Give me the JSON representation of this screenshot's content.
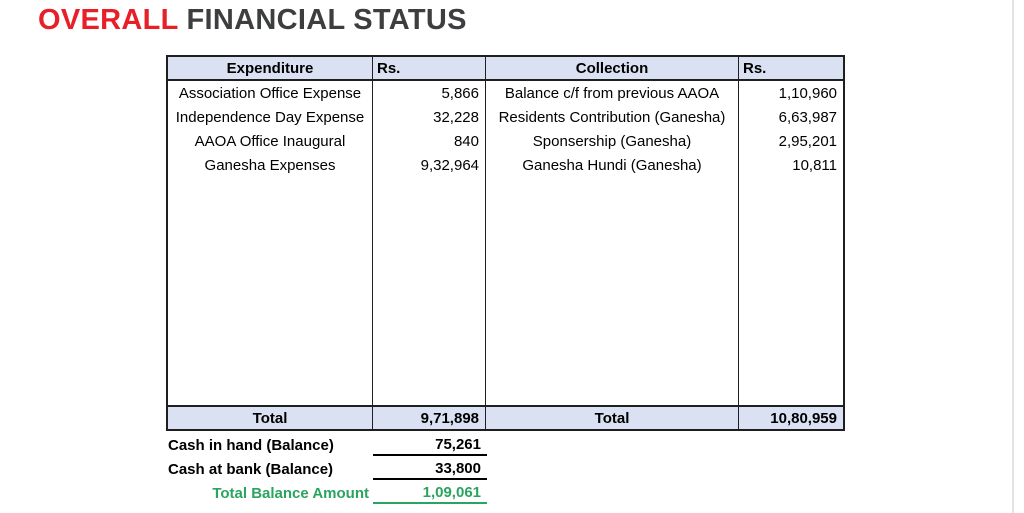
{
  "title": {
    "highlight": "OVERALL",
    "rest": " FINANCIAL STATUS"
  },
  "colors": {
    "accent_red": "#e81e29",
    "title_dark": "#3d3e40",
    "table_header_fill": "#d9e1f2",
    "summary_green": "#2aa45e",
    "table_border": "#1f1f1f"
  },
  "table": {
    "headers": [
      "Expenditure",
      "Rs.",
      "Collection",
      "Rs."
    ],
    "rows": [
      {
        "expenditure": "Association Office Expense",
        "exp_amount": "5,866",
        "collection": "Balance c/f from previous AAOA",
        "col_amount": "1,10,960"
      },
      {
        "expenditure": "Independence Day Expense",
        "exp_amount": "32,228",
        "collection": "Residents Contribution (Ganesha)",
        "col_amount": "6,63,987"
      },
      {
        "expenditure": "AAOA Office Inaugural",
        "exp_amount": "840",
        "collection": "Sponsership (Ganesha)",
        "col_amount": "2,95,201"
      },
      {
        "expenditure": "Ganesha Expenses",
        "exp_amount": "9,32,964",
        "collection": "Ganesha Hundi (Ganesha)",
        "col_amount": "10,811"
      }
    ],
    "total": {
      "label_left": "Total",
      "exp_total": "9,71,898",
      "label_right": "Total",
      "col_total": "10,80,959"
    }
  },
  "summary": {
    "rows": [
      {
        "label": "Cash in hand (Balance)",
        "value": "75,261"
      },
      {
        "label": "Cash at bank (Balance)",
        "value": "33,800"
      },
      {
        "label": "Total Balance Amount",
        "value": "1,09,061"
      }
    ]
  }
}
